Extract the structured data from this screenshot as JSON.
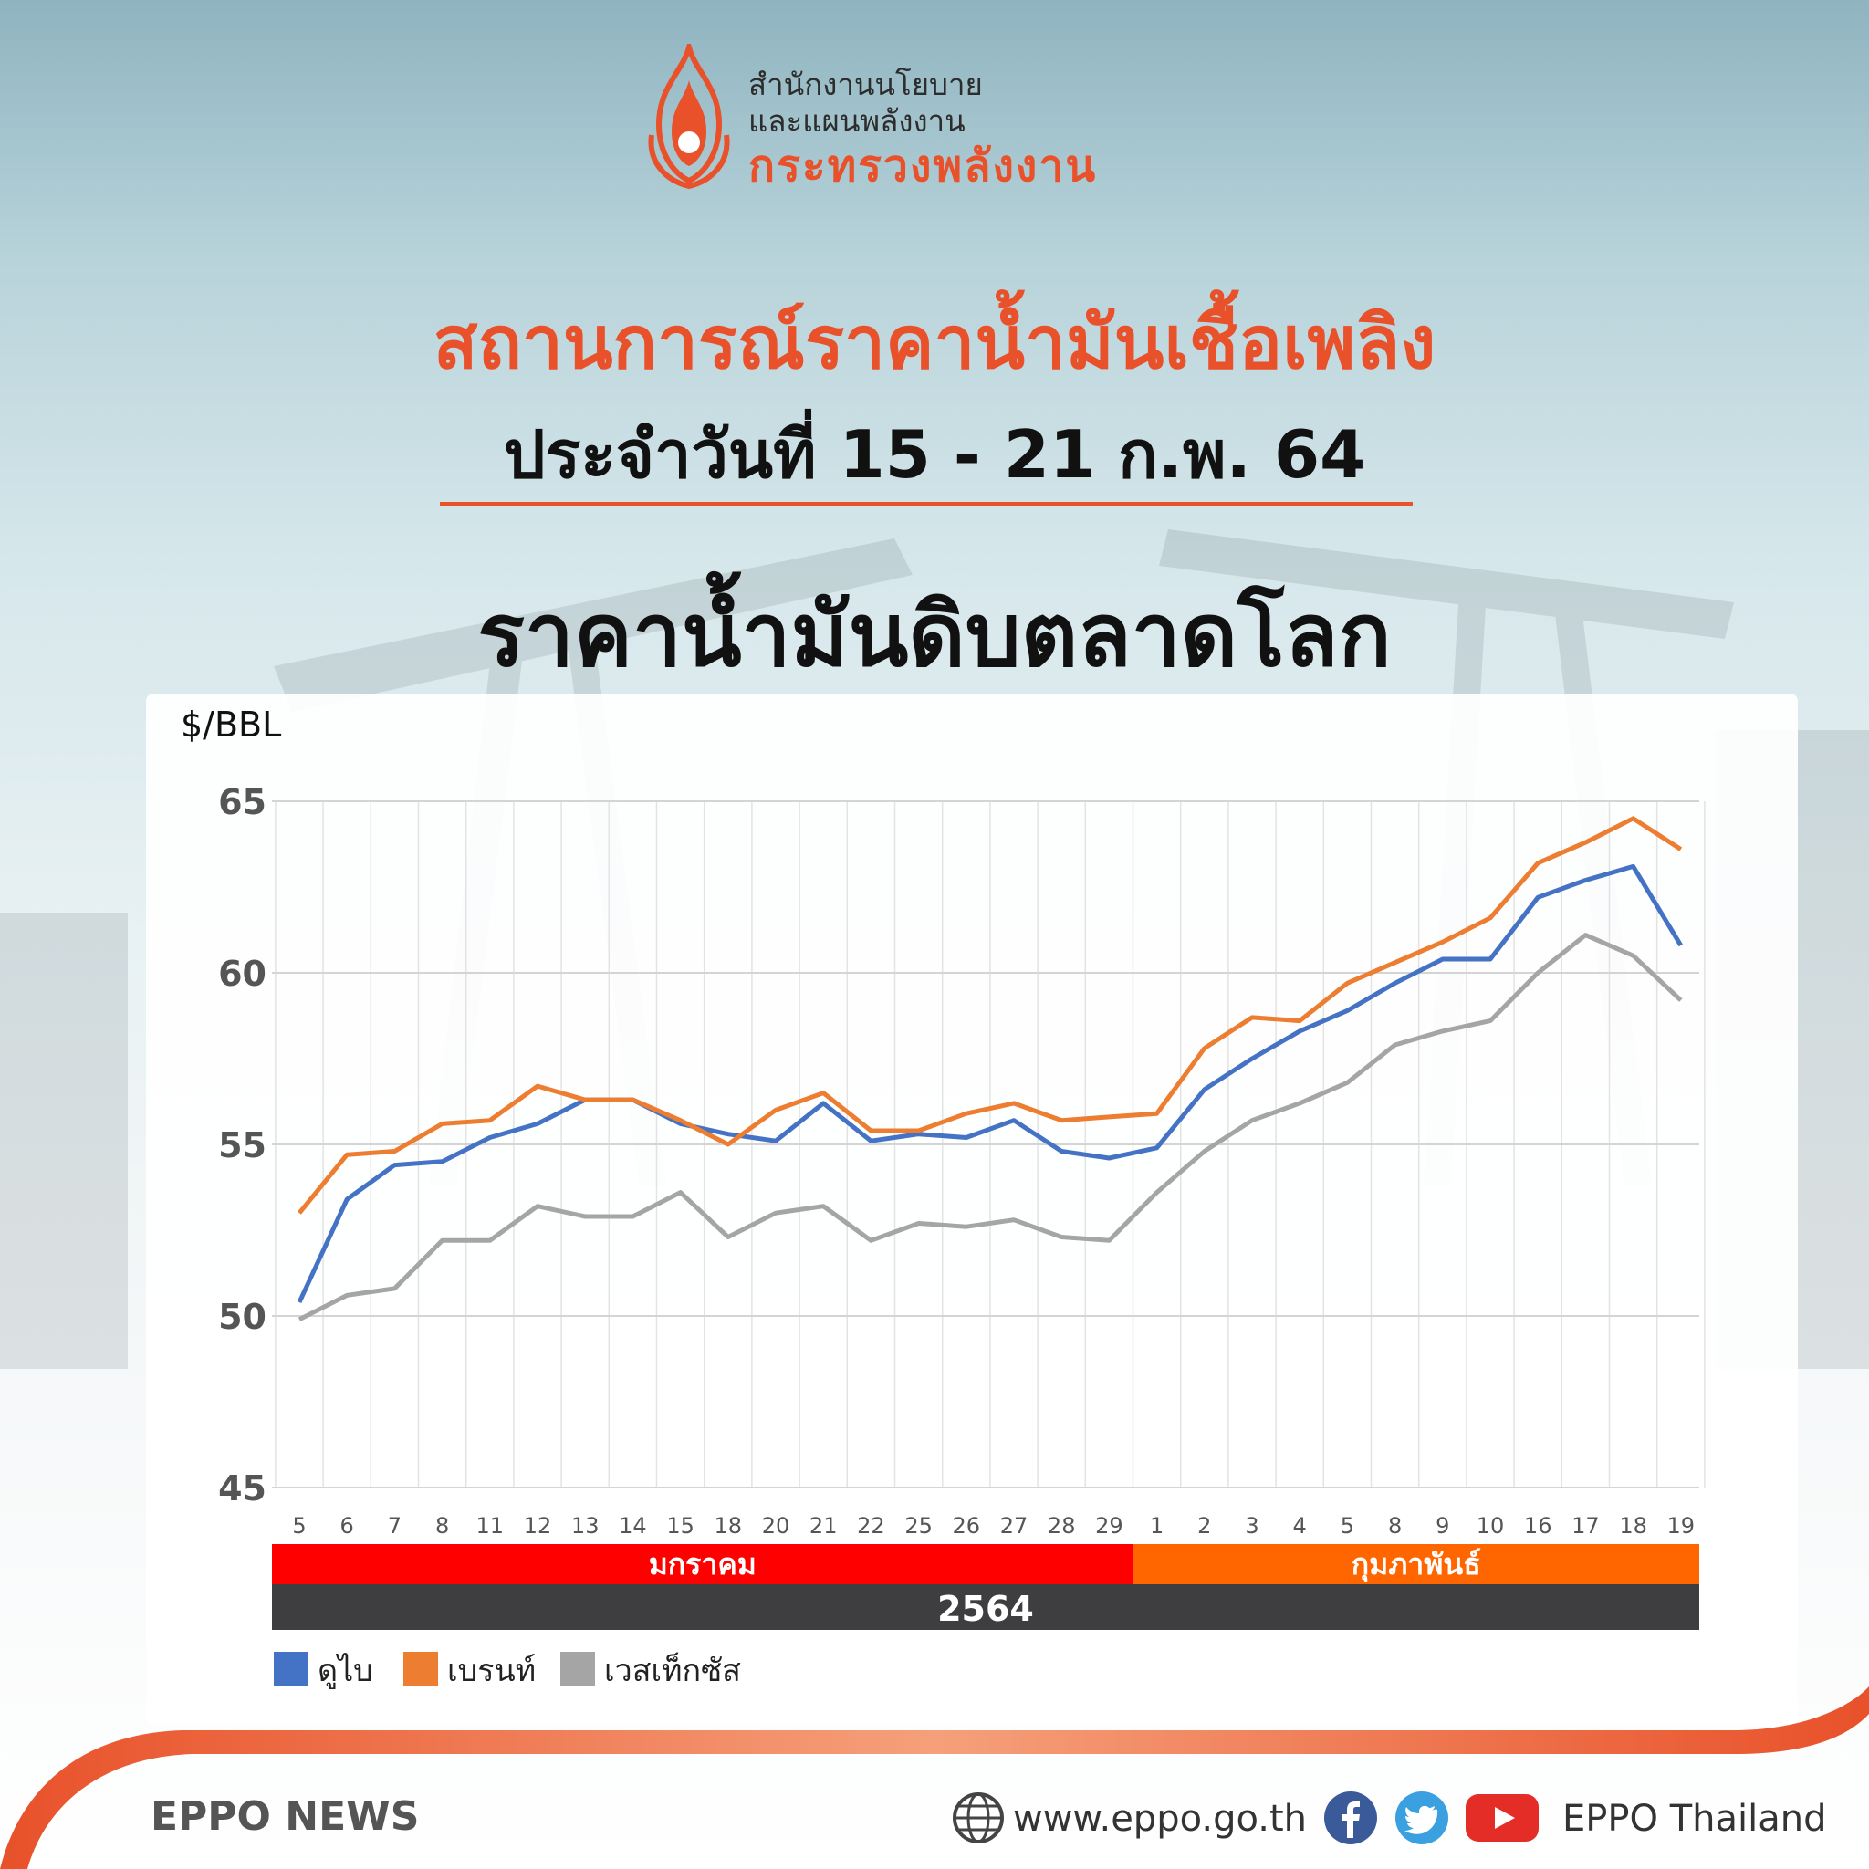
{
  "logo": {
    "line1": "สำนักงานนโยบาย",
    "line2": "และแผนพลังงาน",
    "line3": "กระทรวงพลังงาน"
  },
  "title": "สถานการณ์ราคาน้ำมันเชื้อเพลิง",
  "subtitle": "ประจำวันที่ 15 - 21 ก.พ. 64",
  "heading": "ราคาน้ำมันดิบตลาดโลก",
  "colors": {
    "accent": "#e8512a",
    "dubai": "#4472c4",
    "brent": "#ed7d31",
    "wti": "#a5a5a5",
    "month1": "#ff0000",
    "month2": "#ff6600",
    "year": "#3e3e40"
  },
  "chart_data": {
    "type": "line",
    "ylabel": "$/BBL",
    "ylim": [
      45,
      65
    ],
    "yticks": [
      45,
      50,
      55,
      60,
      65
    ],
    "grid": true,
    "categories": [
      "5",
      "6",
      "7",
      "8",
      "11",
      "12",
      "13",
      "14",
      "15",
      "18",
      "20",
      "21",
      "22",
      "25",
      "26",
      "27",
      "28",
      "29",
      "1",
      "2",
      "3",
      "4",
      "5",
      "8",
      "9",
      "10",
      "16",
      "17",
      "18",
      "19"
    ],
    "months": [
      {
        "label": "มกราคม",
        "count": 18
      },
      {
        "label": "กุมภาพันธ์",
        "count": 12
      }
    ],
    "year": "2564",
    "series": [
      {
        "name": "ดูไบ",
        "color": "#4472c4",
        "values": [
          50.4,
          53.4,
          54.4,
          54.5,
          55.2,
          55.6,
          56.3,
          56.3,
          55.6,
          55.3,
          55.1,
          56.2,
          55.1,
          55.3,
          55.2,
          55.7,
          54.8,
          54.6,
          54.9,
          56.6,
          57.5,
          58.3,
          58.9,
          59.7,
          60.4,
          60.4,
          62.2,
          62.7,
          63.1,
          60.8
        ]
      },
      {
        "name": "เบรนท์",
        "color": "#ed7d31",
        "values": [
          53.0,
          54.7,
          54.8,
          55.6,
          55.7,
          56.7,
          56.3,
          56.3,
          55.7,
          55.0,
          56.0,
          56.5,
          55.4,
          55.4,
          55.9,
          56.2,
          55.7,
          55.8,
          55.9,
          57.8,
          58.7,
          58.6,
          59.7,
          60.3,
          60.9,
          61.6,
          63.2,
          63.8,
          64.5,
          63.6
        ]
      },
      {
        "name": "เวสเท็กซัส",
        "color": "#a5a5a5",
        "values": [
          49.9,
          50.6,
          50.8,
          52.2,
          52.2,
          53.2,
          52.9,
          52.9,
          53.6,
          52.3,
          53.0,
          53.2,
          52.2,
          52.7,
          52.6,
          52.8,
          52.3,
          52.2,
          53.6,
          54.8,
          55.7,
          56.2,
          56.8,
          57.9,
          58.3,
          58.6,
          60.0,
          61.1,
          60.5,
          59.2
        ]
      }
    ]
  },
  "footer": {
    "name": "EPPO NEWS",
    "url": "www.eppo.go.th",
    "youtube": "EPPO Thailand"
  }
}
